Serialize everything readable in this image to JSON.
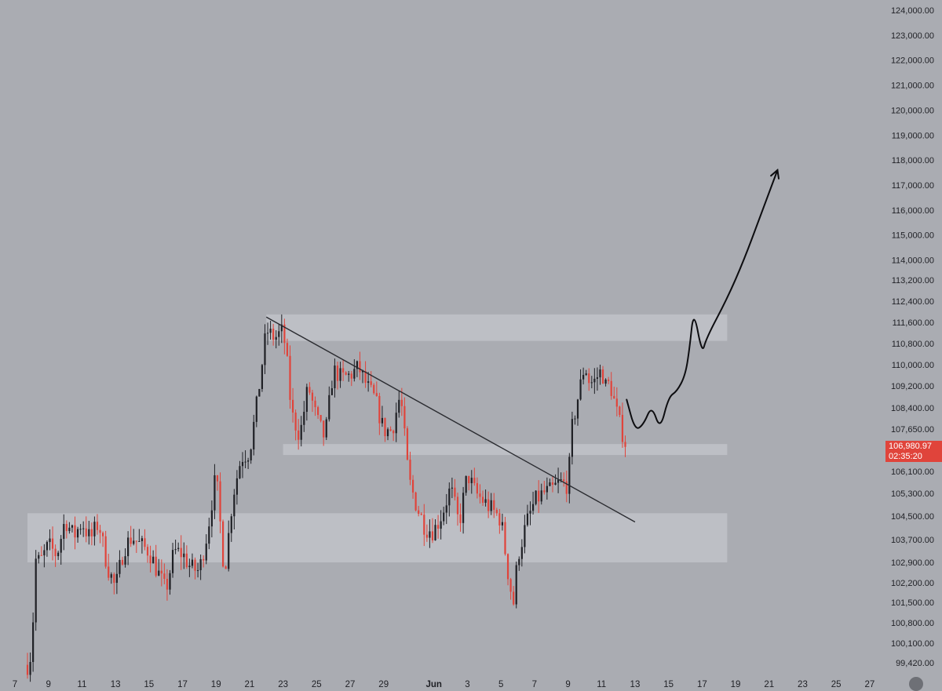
{
  "chart_data": {
    "type": "candlestick",
    "title": "",
    "y_axis": {
      "position": "right",
      "range": [
        99100,
        124200
      ],
      "ticks": [
        "124,000.00",
        "123,000.00",
        "122,000.00",
        "121,000.00",
        "120,000.00",
        "119,000.00",
        "118,000.00",
        "117,000.00",
        "116,000.00",
        "115,000.00",
        "114,000.00",
        "113,200.00",
        "112,400.00",
        "111,600.00",
        "110,800.00",
        "110,000.00",
        "109,200.00",
        "108,400.00",
        "107,650.00",
        "106,100.00",
        "105,300.00",
        "104,500.00",
        "103,700.00",
        "102,900.00",
        "102,200.00",
        "101,500.00",
        "100,800.00",
        "100,100.00",
        "99,420.00"
      ]
    },
    "x_axis": {
      "range": [
        "May 7",
        "June 28"
      ],
      "ticks": [
        {
          "label": "7",
          "date": "May 7"
        },
        {
          "label": "9",
          "date": "May 9"
        },
        {
          "label": "11",
          "date": "May 11"
        },
        {
          "label": "13",
          "date": "May 13"
        },
        {
          "label": "15",
          "date": "May 15"
        },
        {
          "label": "17",
          "date": "May 17"
        },
        {
          "label": "19",
          "date": "May 19"
        },
        {
          "label": "21",
          "date": "May 21"
        },
        {
          "label": "23",
          "date": "May 23"
        },
        {
          "label": "25",
          "date": "May 25"
        },
        {
          "label": "27",
          "date": "May 27"
        },
        {
          "label": "29",
          "date": "May 29"
        },
        {
          "label": "Jun",
          "date": "Jun 1"
        },
        {
          "label": "3",
          "date": "Jun 3"
        },
        {
          "label": "5",
          "date": "Jun 5"
        },
        {
          "label": "7",
          "date": "Jun 7"
        },
        {
          "label": "9",
          "date": "Jun 9"
        },
        {
          "label": "11",
          "date": "Jun 11"
        },
        {
          "label": "13",
          "date": "Jun 13"
        },
        {
          "label": "15",
          "date": "Jun 15"
        },
        {
          "label": "17",
          "date": "Jun 17"
        },
        {
          "label": "19",
          "date": "Jun 19"
        },
        {
          "label": "21",
          "date": "Jun 21"
        },
        {
          "label": "23",
          "date": "Jun 23"
        },
        {
          "label": "25",
          "date": "Jun 25"
        },
        {
          "label": "27",
          "date": "Jun 27"
        }
      ]
    },
    "close_path": [
      {
        "date": "May 7 18:00",
        "close": 99350
      },
      {
        "date": "May 8 00:00",
        "close": 99800
      },
      {
        "date": "May 8 03:00",
        "close": 101500
      },
      {
        "date": "May 8 06:00",
        "close": 103000
      },
      {
        "date": "May 8 12:00",
        "close": 102900
      },
      {
        "date": "May 9 00:00",
        "close": 103500
      },
      {
        "date": "May 9 12:00",
        "close": 103150
      },
      {
        "date": "May 10 00:00",
        "close": 104400
      },
      {
        "date": "May 10 12:00",
        "close": 103800
      },
      {
        "date": "May 11 00:00",
        "close": 104300
      },
      {
        "date": "May 11 12:00",
        "close": 103700
      },
      {
        "date": "May 12 00:00",
        "close": 104300
      },
      {
        "date": "May 12 12:00",
        "close": 102800
      },
      {
        "date": "May 13 00:00",
        "close": 102000
      },
      {
        "date": "May 13 12:00",
        "close": 103400
      },
      {
        "date": "May 14 00:00",
        "close": 103800
      },
      {
        "date": "May 14 12:00",
        "close": 103500
      },
      {
        "date": "May 15 00:00",
        "close": 103300
      },
      {
        "date": "May 15 12:00",
        "close": 102600
      },
      {
        "date": "May 16 00:00",
        "close": 101900
      },
      {
        "date": "May 16 12:00",
        "close": 103300
      },
      {
        "date": "May 17 00:00",
        "close": 103200
      },
      {
        "date": "May 17 12:00",
        "close": 102700
      },
      {
        "date": "May 18 00:00",
        "close": 102600
      },
      {
        "date": "May 18 12:00",
        "close": 104000
      },
      {
        "date": "May 19 00:00",
        "close": 106000
      },
      {
        "date": "May 19 12:00",
        "close": 102500
      },
      {
        "date": "May 20 00:00",
        "close": 105200
      },
      {
        "date": "May 20 12:00",
        "close": 106600
      },
      {
        "date": "May 21 00:00",
        "close": 106800
      },
      {
        "date": "May 21 12:00",
        "close": 108800
      },
      {
        "date": "May 22 00:00",
        "close": 111300
      },
      {
        "date": "May 22 12:00",
        "close": 111000
      },
      {
        "date": "May 23 00:00",
        "close": 111300
      },
      {
        "date": "May 23 06:00",
        "close": 110000
      },
      {
        "date": "May 23 12:00",
        "close": 108200
      },
      {
        "date": "May 24 00:00",
        "close": 107400
      },
      {
        "date": "May 24 12:00",
        "close": 109200
      },
      {
        "date": "May 25 00:00",
        "close": 108000
      },
      {
        "date": "May 25 12:00",
        "close": 107300
      },
      {
        "date": "May 26 00:00",
        "close": 109800
      },
      {
        "date": "May 26 12:00",
        "close": 109500
      },
      {
        "date": "May 27 00:00",
        "close": 109600
      },
      {
        "date": "May 27 12:00",
        "close": 109900
      },
      {
        "date": "May 28 00:00",
        "close": 109200
      },
      {
        "date": "May 28 12:00",
        "close": 108700
      },
      {
        "date": "May 29 00:00",
        "close": 107600
      },
      {
        "date": "May 29 12:00",
        "close": 107600
      },
      {
        "date": "May 30 00:00",
        "close": 108900
      },
      {
        "date": "May 30 12:00",
        "close": 105800
      },
      {
        "date": "May 31 00:00",
        "close": 104800
      },
      {
        "date": "May 31 12:00",
        "close": 104100
      },
      {
        "date": "Jun 1 00:00",
        "close": 104000
      },
      {
        "date": "Jun 1 12:00",
        "close": 104600
      },
      {
        "date": "Jun 2 00:00",
        "close": 105500
      },
      {
        "date": "Jun 2 12:00",
        "close": 104200
      },
      {
        "date": "Jun 3 00:00",
        "close": 106000
      },
      {
        "date": "Jun 3 12:00",
        "close": 105300
      },
      {
        "date": "Jun 4 00:00",
        "close": 105000
      },
      {
        "date": "Jun 4 12:00",
        "close": 104700
      },
      {
        "date": "Jun 5 00:00",
        "close": 104400
      },
      {
        "date": "Jun 5 12:00",
        "close": 102200
      },
      {
        "date": "Jun 5 18:00",
        "close": 101500
      },
      {
        "date": "Jun 6 00:00",
        "close": 103100
      },
      {
        "date": "Jun 6 12:00",
        "close": 104200
      },
      {
        "date": "Jun 7 00:00",
        "close": 105000
      },
      {
        "date": "Jun 7 12:00",
        "close": 105300
      },
      {
        "date": "Jun 8 00:00",
        "close": 105400
      },
      {
        "date": "Jun 8 12:00",
        "close": 105700
      },
      {
        "date": "Jun 9 00:00",
        "close": 105600
      },
      {
        "date": "Jun 9 06:00",
        "close": 107700
      },
      {
        "date": "Jun 9 12:00",
        "close": 108500
      },
      {
        "date": "Jun 10 00:00",
        "close": 110000
      },
      {
        "date": "Jun 10 06:00",
        "close": 109400
      },
      {
        "date": "Jun 10 12:00",
        "close": 109300
      },
      {
        "date": "Jun 11 00:00",
        "close": 109800
      },
      {
        "date": "Jun 11 06:00",
        "close": 109200
      },
      {
        "date": "Jun 11 12:00",
        "close": 109300
      },
      {
        "date": "Jun 12 00:00",
        "close": 108000
      },
      {
        "date": "Jun 12 06:00",
        "close": 107500
      },
      {
        "date": "Jun 12 12:00",
        "close": 106980
      }
    ],
    "current_price": {
      "value": 106980.97,
      "label": "106,980.97",
      "countdown": "02:35:20",
      "color": "#e0443b"
    },
    "zones": [
      {
        "name": "resistance-zone",
        "from": 110900,
        "to": 111900,
        "start": "May 22",
        "end": "Jun 18 12:00"
      },
      {
        "name": "retest-zone",
        "from": 106700,
        "to": 107100,
        "start": "May 23",
        "end": "Jun 18 12:00"
      },
      {
        "name": "support-zone",
        "from": 102900,
        "to": 104600,
        "start": "May 7 18:00",
        "end": "Jun 18 12:00"
      }
    ],
    "trendline": {
      "from": {
        "date": "May 22",
        "price": 111800
      },
      "to": {
        "date": "Jun 13",
        "price": 104300
      }
    },
    "projection_path": [
      {
        "date": "Jun 12 12:00",
        "price": 108700
      },
      {
        "date": "Jun 13 00:00",
        "price": 107600
      },
      {
        "date": "Jun 13 12:00",
        "price": 107800
      },
      {
        "date": "Jun 14 00:00",
        "price": 108500
      },
      {
        "date": "Jun 14 12:00",
        "price": 107600
      },
      {
        "date": "Jun 15 00:00",
        "price": 108800
      },
      {
        "date": "Jun 15 12:00",
        "price": 109000
      },
      {
        "date": "Jun 16 00:00",
        "price": 109600
      },
      {
        "date": "Jun 16 06:00",
        "price": 110600
      },
      {
        "date": "Jun 16 12:00",
        "price": 112100
      },
      {
        "date": "Jun 17 00:00",
        "price": 110400
      },
      {
        "date": "Jun 17 06:00",
        "price": 111000
      },
      {
        "date": "Jun 18 12:00",
        "price": 112500
      },
      {
        "date": "Jun 19 12:00",
        "price": 114000
      },
      {
        "date": "Jun 20 12:00",
        "price": 115800
      },
      {
        "date": "Jun 21 12:00",
        "price": 117600
      }
    ],
    "colors": {
      "background": "#aaacb2",
      "up_candle": "#1f2025",
      "down_candle": "#e0443b",
      "zone": "#c8cad0",
      "trendline": "#2a2b30",
      "text": "#1f2025"
    },
    "grid": false,
    "legend": "none"
  },
  "ui": {
    "settings_button": "chart-settings"
  }
}
